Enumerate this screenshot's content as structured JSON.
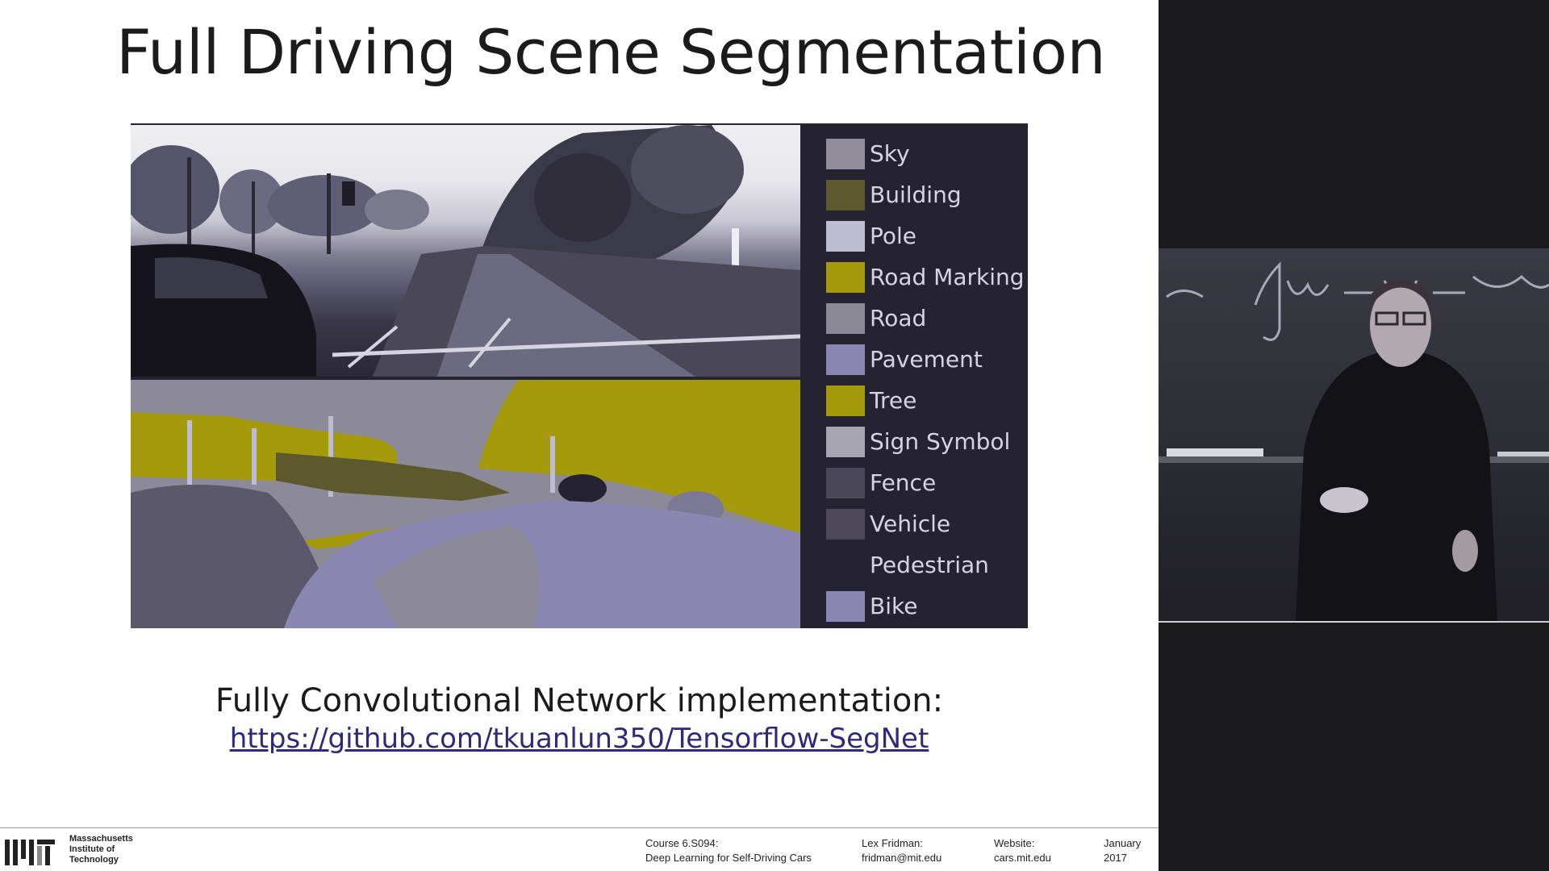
{
  "slide": {
    "title": "Full Driving Scene Segmentation",
    "caption": "Fully Convolutional Network implementation:",
    "link": "https://github.com/tkuanlun350/Tensorflow-SegNet"
  },
  "legend": [
    {
      "label": "Sky",
      "color": "#908c99"
    },
    {
      "label": "Building",
      "color": "#5c5a2c"
    },
    {
      "label": "Pole",
      "color": "#bdbcd2"
    },
    {
      "label": "Road Marking",
      "color": "#a59a0c"
    },
    {
      "label": "Road",
      "color": "#8a8895"
    },
    {
      "label": "Pavement",
      "color": "#8a87b2"
    },
    {
      "label": "Tree",
      "color": "#a59a0c"
    },
    {
      "label": "Sign Symbol",
      "color": "#a8a5b2"
    },
    {
      "label": "Fence",
      "color": "#4a4858"
    },
    {
      "label": "Vehicle",
      "color": "#4c4858"
    },
    {
      "label": "Pedestrian",
      "color": "#252331"
    },
    {
      "label": "Bike",
      "color": "#8a87b2"
    }
  ],
  "footer": {
    "institution": "Massachusetts\nInstitute of\nTechnology",
    "course_code": "Course 6.S094:",
    "course_name": "Deep Learning for Self-Driving Cars",
    "author": "Lex Fridman:",
    "email": "fridman@mit.edu",
    "website_label": "Website:",
    "website": "cars.mit.edu",
    "month": "January",
    "year": "2017"
  },
  "icons": {
    "logo": "mit-logo-icon"
  },
  "colors": {
    "slide_bg": "#ffffff",
    "figure_bg": "#252331",
    "link": "#2e2a78",
    "tree": "#a59a0c",
    "pavement": "#8a87b2"
  }
}
